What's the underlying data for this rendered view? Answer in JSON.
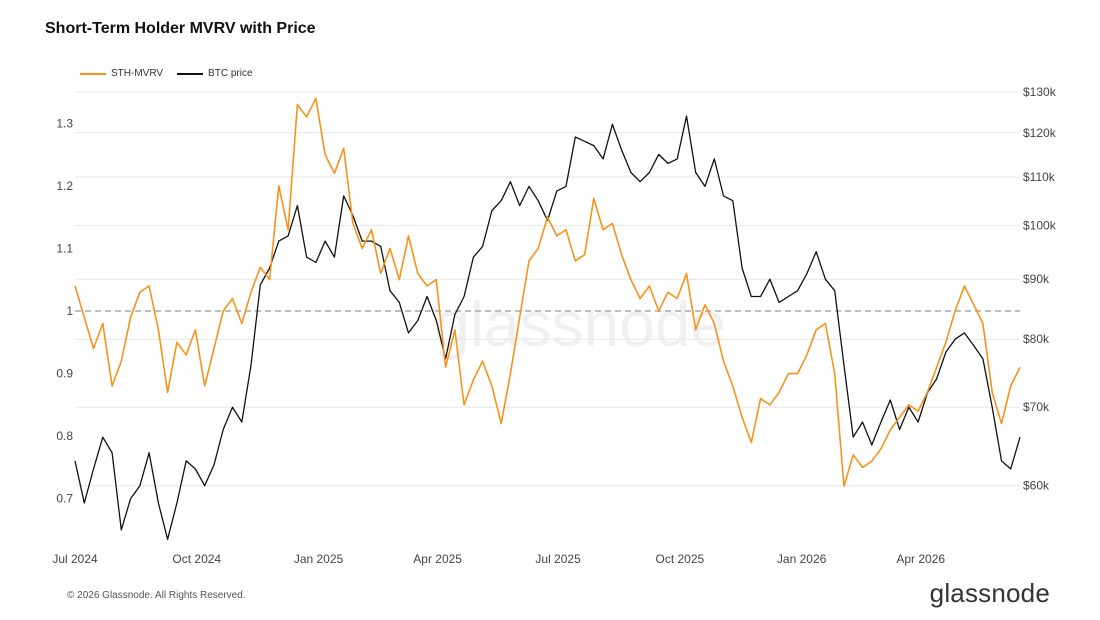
{
  "title": "Short-Term Holder MVRV with Price",
  "footer": "© 2026 Glassnode. All Rights Reserved.",
  "brand": "glassnode",
  "watermark": "glassnode",
  "colors": {
    "mvrv": "#f7931a",
    "price": "#111111",
    "grid": "#e6e6e6",
    "reference": "#999999"
  },
  "chart_data": {
    "type": "line",
    "title": "Short-Term Holder MVRV with Price",
    "legend_position": "top-left",
    "grid": true,
    "x_ticks": [
      "Jul 2024",
      "Oct 2024",
      "Jan 2025",
      "Apr 2025",
      "Jul 2025",
      "Oct 2025",
      "Jan 2026",
      "Apr 2026"
    ],
    "x_range": [
      "2024-07-01",
      "2026-06-15"
    ],
    "y_left": {
      "ticks": [
        "0.7",
        "0.8",
        "0.9",
        "1",
        "1.1",
        "1.2",
        "1.3"
      ],
      "range": [
        0.65,
        1.35
      ]
    },
    "y_right": {
      "scale": "log",
      "ticks": [
        "$60k",
        "$70k",
        "$80k",
        "$90k",
        "$100k",
        "$110k",
        "$120k",
        "$130k"
      ],
      "range": [
        55000,
        130000
      ]
    },
    "reference_line": {
      "axis": "left",
      "value": 1
    },
    "series": [
      {
        "name": "STH-MVRV",
        "axis": "left",
        "points": [
          [
            "2024-07-01",
            1.04
          ],
          [
            "2024-07-08",
            0.99
          ],
          [
            "2024-07-15",
            0.94
          ],
          [
            "2024-07-22",
            0.98
          ],
          [
            "2024-07-29",
            0.88
          ],
          [
            "2024-08-05",
            0.92
          ],
          [
            "2024-08-12",
            0.99
          ],
          [
            "2024-08-19",
            1.03
          ],
          [
            "2024-08-26",
            1.04
          ],
          [
            "2024-09-02",
            0.97
          ],
          [
            "2024-09-09",
            0.87
          ],
          [
            "2024-09-16",
            0.95
          ],
          [
            "2024-09-23",
            0.93
          ],
          [
            "2024-09-30",
            0.97
          ],
          [
            "2024-10-07",
            0.88
          ],
          [
            "2024-10-14",
            0.94
          ],
          [
            "2024-10-21",
            1.0
          ],
          [
            "2024-10-28",
            1.02
          ],
          [
            "2024-11-04",
            0.98
          ],
          [
            "2024-11-11",
            1.03
          ],
          [
            "2024-11-18",
            1.07
          ],
          [
            "2024-11-25",
            1.05
          ],
          [
            "2024-12-02",
            1.2
          ],
          [
            "2024-12-09",
            1.13
          ],
          [
            "2024-12-16",
            1.33
          ],
          [
            "2024-12-23",
            1.31
          ],
          [
            "2024-12-30",
            1.34
          ],
          [
            "2025-01-06",
            1.25
          ],
          [
            "2025-01-13",
            1.22
          ],
          [
            "2025-01-20",
            1.26
          ],
          [
            "2025-01-27",
            1.14
          ],
          [
            "2025-02-03",
            1.1
          ],
          [
            "2025-02-10",
            1.13
          ],
          [
            "2025-02-17",
            1.06
          ],
          [
            "2025-02-24",
            1.1
          ],
          [
            "2025-03-03",
            1.05
          ],
          [
            "2025-03-10",
            1.12
          ],
          [
            "2025-03-17",
            1.06
          ],
          [
            "2025-03-24",
            1.04
          ],
          [
            "2025-03-31",
            1.05
          ],
          [
            "2025-04-07",
            0.91
          ],
          [
            "2025-04-14",
            0.97
          ],
          [
            "2025-04-21",
            0.85
          ],
          [
            "2025-04-28",
            0.89
          ],
          [
            "2025-05-05",
            0.92
          ],
          [
            "2025-05-12",
            0.88
          ],
          [
            "2025-05-19",
            0.82
          ],
          [
            "2025-05-26",
            0.9
          ],
          [
            "2025-06-02",
            0.99
          ],
          [
            "2025-06-09",
            1.08
          ],
          [
            "2025-06-16",
            1.1
          ],
          [
            "2025-06-23",
            1.15
          ],
          [
            "2025-06-30",
            1.12
          ],
          [
            "2025-07-07",
            1.13
          ],
          [
            "2025-07-14",
            1.08
          ],
          [
            "2025-07-21",
            1.09
          ],
          [
            "2025-07-28",
            1.18
          ],
          [
            "2025-08-04",
            1.13
          ],
          [
            "2025-08-11",
            1.14
          ],
          [
            "2025-08-18",
            1.09
          ],
          [
            "2025-08-25",
            1.05
          ],
          [
            "2025-09-01",
            1.02
          ],
          [
            "2025-09-08",
            1.04
          ],
          [
            "2025-09-15",
            1.0
          ],
          [
            "2025-09-22",
            1.03
          ],
          [
            "2025-09-29",
            1.02
          ],
          [
            "2025-10-06",
            1.06
          ],
          [
            "2025-10-13",
            0.97
          ],
          [
            "2025-10-20",
            1.01
          ],
          [
            "2025-10-27",
            0.98
          ],
          [
            "2025-11-03",
            0.92
          ],
          [
            "2025-11-10",
            0.88
          ],
          [
            "2025-11-17",
            0.83
          ],
          [
            "2025-11-24",
            0.79
          ],
          [
            "2025-12-01",
            0.86
          ],
          [
            "2025-12-08",
            0.85
          ],
          [
            "2025-12-15",
            0.87
          ],
          [
            "2025-12-22",
            0.9
          ],
          [
            "2025-12-29",
            0.9
          ],
          [
            "2026-01-05",
            0.93
          ],
          [
            "2026-01-12",
            0.97
          ],
          [
            "2026-01-19",
            0.98
          ],
          [
            "2026-01-26",
            0.9
          ],
          [
            "2026-02-02",
            0.72
          ],
          [
            "2026-02-09",
            0.77
          ],
          [
            "2026-02-16",
            0.75
          ],
          [
            "2026-02-23",
            0.76
          ],
          [
            "2026-03-02",
            0.78
          ],
          [
            "2026-03-09",
            0.81
          ],
          [
            "2026-03-16",
            0.83
          ],
          [
            "2026-03-23",
            0.85
          ],
          [
            "2026-03-30",
            0.84
          ],
          [
            "2026-04-06",
            0.87
          ],
          [
            "2026-04-13",
            0.91
          ],
          [
            "2026-04-20",
            0.95
          ],
          [
            "2026-04-27",
            1.0
          ],
          [
            "2026-05-04",
            1.04
          ],
          [
            "2026-05-11",
            1.01
          ],
          [
            "2026-05-18",
            0.98
          ],
          [
            "2026-05-25",
            0.87
          ],
          [
            "2026-06-01",
            0.82
          ],
          [
            "2026-06-08",
            0.88
          ],
          [
            "2026-06-15",
            0.91
          ]
        ]
      },
      {
        "name": "BTC price",
        "axis": "right",
        "points": [
          [
            "2024-07-01",
            63000
          ],
          [
            "2024-07-08",
            58000
          ],
          [
            "2024-07-15",
            62000
          ],
          [
            "2024-07-22",
            66000
          ],
          [
            "2024-07-29",
            64000
          ],
          [
            "2024-08-05",
            55000
          ],
          [
            "2024-08-12",
            58500
          ],
          [
            "2024-08-19",
            60000
          ],
          [
            "2024-08-26",
            64000
          ],
          [
            "2024-09-02",
            58000
          ],
          [
            "2024-09-09",
            54000
          ],
          [
            "2024-09-16",
            58000
          ],
          [
            "2024-09-23",
            63000
          ],
          [
            "2024-09-30",
            62000
          ],
          [
            "2024-10-07",
            60000
          ],
          [
            "2024-10-14",
            62500
          ],
          [
            "2024-10-21",
            67000
          ],
          [
            "2024-10-28",
            70000
          ],
          [
            "2024-11-04",
            68000
          ],
          [
            "2024-11-11",
            76000
          ],
          [
            "2024-11-18",
            89000
          ],
          [
            "2024-11-25",
            92000
          ],
          [
            "2024-12-02",
            97000
          ],
          [
            "2024-12-09",
            98000
          ],
          [
            "2024-12-16",
            104000
          ],
          [
            "2024-12-23",
            94000
          ],
          [
            "2024-12-30",
            93000
          ],
          [
            "2025-01-06",
            97000
          ],
          [
            "2025-01-13",
            94000
          ],
          [
            "2025-01-20",
            106000
          ],
          [
            "2025-01-27",
            102000
          ],
          [
            "2025-02-03",
            97000
          ],
          [
            "2025-02-10",
            97000
          ],
          [
            "2025-02-17",
            96000
          ],
          [
            "2025-02-24",
            88000
          ],
          [
            "2025-03-03",
            86000
          ],
          [
            "2025-03-10",
            81000
          ],
          [
            "2025-03-17",
            83000
          ],
          [
            "2025-03-24",
            87000
          ],
          [
            "2025-03-31",
            83000
          ],
          [
            "2025-04-07",
            77000
          ],
          [
            "2025-04-14",
            84000
          ],
          [
            "2025-04-21",
            87000
          ],
          [
            "2025-04-28",
            94000
          ],
          [
            "2025-05-05",
            96000
          ],
          [
            "2025-05-12",
            103000
          ],
          [
            "2025-05-19",
            105000
          ],
          [
            "2025-05-26",
            109000
          ],
          [
            "2025-06-02",
            104000
          ],
          [
            "2025-06-09",
            108000
          ],
          [
            "2025-06-16",
            105000
          ],
          [
            "2025-06-23",
            101000
          ],
          [
            "2025-06-30",
            107000
          ],
          [
            "2025-07-07",
            108000
          ],
          [
            "2025-07-14",
            119000
          ],
          [
            "2025-07-21",
            118000
          ],
          [
            "2025-07-28",
            117000
          ],
          [
            "2025-08-04",
            114000
          ],
          [
            "2025-08-11",
            122000
          ],
          [
            "2025-08-18",
            116000
          ],
          [
            "2025-08-25",
            111000
          ],
          [
            "2025-09-01",
            109000
          ],
          [
            "2025-09-08",
            111000
          ],
          [
            "2025-09-15",
            115000
          ],
          [
            "2025-09-22",
            113000
          ],
          [
            "2025-09-29",
            114000
          ],
          [
            "2025-10-06",
            124000
          ],
          [
            "2025-10-13",
            111000
          ],
          [
            "2025-10-20",
            108000
          ],
          [
            "2025-10-27",
            114000
          ],
          [
            "2025-11-03",
            106000
          ],
          [
            "2025-11-10",
            105000
          ],
          [
            "2025-11-17",
            92000
          ],
          [
            "2025-11-24",
            87000
          ],
          [
            "2025-12-01",
            87000
          ],
          [
            "2025-12-08",
            90000
          ],
          [
            "2025-12-15",
            86000
          ],
          [
            "2025-12-22",
            87000
          ],
          [
            "2025-12-29",
            88000
          ],
          [
            "2026-01-05",
            91000
          ],
          [
            "2026-01-12",
            95000
          ],
          [
            "2026-01-19",
            90000
          ],
          [
            "2026-01-26",
            88000
          ],
          [
            "2026-02-02",
            76000
          ],
          [
            "2026-02-09",
            66000
          ],
          [
            "2026-02-16",
            68000
          ],
          [
            "2026-02-23",
            65000
          ],
          [
            "2026-03-02",
            68000
          ],
          [
            "2026-03-09",
            71000
          ],
          [
            "2026-03-16",
            67000
          ],
          [
            "2026-03-23",
            70000
          ],
          [
            "2026-03-30",
            68000
          ],
          [
            "2026-04-06",
            72000
          ],
          [
            "2026-04-13",
            74000
          ],
          [
            "2026-04-20",
            78000
          ],
          [
            "2026-04-27",
            80000
          ],
          [
            "2026-05-04",
            81000
          ],
          [
            "2026-05-11",
            79000
          ],
          [
            "2026-05-18",
            77000
          ],
          [
            "2026-05-25",
            70000
          ],
          [
            "2026-06-01",
            63000
          ],
          [
            "2026-06-08",
            62000
          ],
          [
            "2026-06-15",
            66000
          ]
        ]
      }
    ]
  }
}
